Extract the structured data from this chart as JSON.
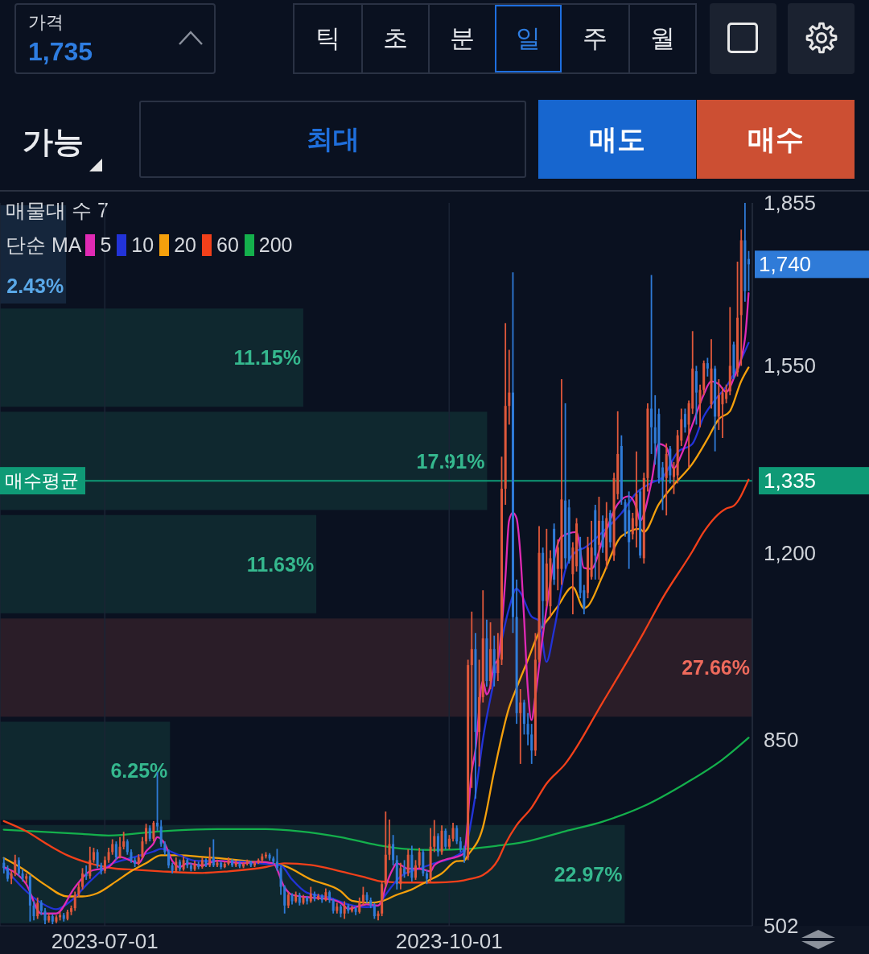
{
  "chart_data": [
    {
      "type": "candlestick",
      "x": [
        "2023-06-04",
        "2023-06-05",
        "2023-06-06",
        "2023-06-07",
        "2023-06-08",
        "2023-06-09",
        "2023-06-10",
        "2023-06-11",
        "2023-06-12",
        "2023-06-13",
        "2023-06-14",
        "2023-06-15",
        "2023-06-16",
        "2023-06-17",
        "2023-06-18",
        "2023-06-19",
        "2023-06-20",
        "2023-06-21",
        "2023-06-22",
        "2023-06-23",
        "2023-06-24",
        "2023-06-25",
        "2023-06-26",
        "2023-06-27",
        "2023-06-28",
        "2023-06-29",
        "2023-06-30",
        "2023-07-01",
        "2023-07-02",
        "2023-07-03",
        "2023-07-04",
        "2023-07-05",
        "2023-07-06",
        "2023-07-07",
        "2023-07-08",
        "2023-07-09",
        "2023-07-10",
        "2023-07-11",
        "2023-07-12",
        "2023-07-13",
        "2023-07-14",
        "2023-07-15",
        "2023-07-16",
        "2023-07-17",
        "2023-07-18",
        "2023-07-19",
        "2023-07-20",
        "2023-07-21",
        "2023-07-22",
        "2023-07-23",
        "2023-07-24",
        "2023-07-25",
        "2023-07-26",
        "2023-07-27",
        "2023-07-28",
        "2023-07-29",
        "2023-07-30",
        "2023-07-31",
        "2023-08-01",
        "2023-08-02",
        "2023-08-03",
        "2023-08-04",
        "2023-08-05",
        "2023-08-06",
        "2023-08-07",
        "2023-08-08",
        "2023-08-09",
        "2023-08-10",
        "2023-08-11",
        "2023-08-12",
        "2023-08-13",
        "2023-08-14",
        "2023-08-15",
        "2023-08-16",
        "2023-08-17",
        "2023-08-18",
        "2023-08-19",
        "2023-08-20",
        "2023-08-21",
        "2023-08-22",
        "2023-08-23",
        "2023-08-24",
        "2023-08-25",
        "2023-08-26",
        "2023-08-27",
        "2023-08-28",
        "2023-08-29",
        "2023-08-30",
        "2023-08-31",
        "2023-09-01",
        "2023-09-02",
        "2023-09-03",
        "2023-09-04",
        "2023-09-05",
        "2023-09-06",
        "2023-09-07",
        "2023-09-08",
        "2023-09-09",
        "2023-09-10",
        "2023-09-11",
        "2023-09-12",
        "2023-09-13",
        "2023-09-14",
        "2023-09-15",
        "2023-09-16",
        "2023-09-17",
        "2023-09-18",
        "2023-09-19",
        "2023-09-20",
        "2023-09-21",
        "2023-09-22",
        "2023-09-23",
        "2023-09-24",
        "2023-09-25",
        "2023-09-26",
        "2023-09-27",
        "2023-09-28",
        "2023-09-29",
        "2023-09-30",
        "2023-10-01",
        "2023-10-02",
        "2023-10-03",
        "2023-10-04",
        "2023-10-05",
        "2023-10-06",
        "2023-10-07",
        "2023-10-08",
        "2023-10-09",
        "2023-10-10",
        "2023-10-11",
        "2023-10-12",
        "2023-10-13",
        "2023-10-14",
        "2023-10-15",
        "2023-10-16",
        "2023-10-17",
        "2023-10-18",
        "2023-10-19",
        "2023-10-20",
        "2023-10-21",
        "2023-10-22",
        "2023-10-23",
        "2023-10-24",
        "2023-10-25",
        "2023-10-26",
        "2023-10-27",
        "2023-10-28",
        "2023-10-29",
        "2023-10-30",
        "2023-10-31",
        "2023-11-01",
        "2023-11-02",
        "2023-11-03",
        "2023-11-04",
        "2023-11-05",
        "2023-11-06",
        "2023-11-07",
        "2023-11-08",
        "2023-11-09",
        "2023-11-10",
        "2023-11-11",
        "2023-11-12",
        "2023-11-13",
        "2023-11-14",
        "2023-11-15",
        "2023-11-16",
        "2023-11-17",
        "2023-11-18",
        "2023-11-19",
        "2023-11-20",
        "2023-11-21",
        "2023-11-22",
        "2023-11-23",
        "2023-11-24",
        "2023-11-25",
        "2023-11-26",
        "2023-11-27",
        "2023-11-28",
        "2023-11-29",
        "2023-11-30",
        "2023-12-01",
        "2023-12-02",
        "2023-12-03",
        "2023-12-04",
        "2023-12-05",
        "2023-12-06",
        "2023-12-07",
        "2023-12-08",
        "2023-12-09",
        "2023-12-10",
        "2023-12-11",
        "2023-12-12",
        "2023-12-13",
        "2023-12-14",
        "2023-12-15",
        "2023-12-16",
        "2023-12-17",
        "2023-12-18",
        "2023-12-19",
        "2023-12-20"
      ],
      "ohlc": [
        [
          620,
          630,
          600,
          610
        ],
        [
          610,
          615,
          585,
          590
        ],
        [
          590,
          605,
          580,
          600
        ],
        [
          600,
          635,
          595,
          625
        ],
        [
          625,
          630,
          595,
          600
        ],
        [
          600,
          608,
          585,
          590
        ],
        [
          590,
          600,
          582,
          595
        ],
        [
          595,
          598,
          510,
          540
        ],
        [
          540,
          548,
          512,
          520
        ],
        [
          520,
          555,
          515,
          545
        ],
        [
          545,
          550,
          522,
          530
        ],
        [
          530,
          535,
          505,
          512
        ],
        [
          512,
          526,
          508,
          520
        ],
        [
          520,
          524,
          505,
          510
        ],
        [
          510,
          522,
          507,
          518
        ],
        [
          518,
          528,
          512,
          522
        ],
        [
          522,
          526,
          510,
          515
        ],
        [
          515,
          532,
          512,
          528
        ],
        [
          528,
          540,
          522,
          535
        ],
        [
          535,
          566,
          530,
          560
        ],
        [
          560,
          582,
          555,
          575
        ],
        [
          575,
          610,
          570,
          600
        ],
        [
          600,
          615,
          588,
          595
        ],
        [
          595,
          650,
          590,
          625
        ],
        [
          625,
          648,
          620,
          640
        ],
        [
          640,
          645,
          610,
          615
        ],
        [
          615,
          620,
          598,
          605
        ],
        [
          605,
          632,
          600,
          625
        ],
        [
          625,
          648,
          620,
          640
        ],
        [
          640,
          664,
          635,
          655
        ],
        [
          655,
          660,
          625,
          630
        ],
        [
          630,
          668,
          628,
          650
        ],
        [
          650,
          678,
          645,
          660
        ],
        [
          660,
          664,
          635,
          640
        ],
        [
          640,
          645,
          620,
          625
        ],
        [
          625,
          630,
          612,
          618
        ],
        [
          618,
          636,
          615,
          630
        ],
        [
          630,
          668,
          628,
          660
        ],
        [
          660,
          693,
          655,
          685
        ],
        [
          685,
          690,
          660,
          665
        ],
        [
          665,
          698,
          660,
          695
        ],
        [
          695,
          790,
          680,
          688
        ],
        [
          688,
          700,
          650,
          655
        ],
        [
          655,
          660,
          635,
          640
        ],
        [
          640,
          645,
          610,
          615
        ],
        [
          615,
          620,
          600,
          605
        ],
        [
          605,
          630,
          602,
          622
        ],
        [
          622,
          626,
          604,
          608
        ],
        [
          608,
          632,
          605,
          625
        ],
        [
          625,
          628,
          610,
          615
        ],
        [
          615,
          620,
          604,
          608
        ],
        [
          608,
          624,
          605,
          618
        ],
        [
          618,
          622,
          608,
          612
        ],
        [
          612,
          630,
          609,
          625
        ],
        [
          625,
          628,
          612,
          615
        ],
        [
          615,
          649,
          612,
          630
        ],
        [
          630,
          664,
          612,
          615
        ],
        [
          615,
          626,
          612,
          620
        ],
        [
          620,
          623,
          608,
          612
        ],
        [
          612,
          622,
          610,
          618
        ],
        [
          618,
          630,
          615,
          625
        ],
        [
          625,
          627,
          612,
          615
        ],
        [
          615,
          624,
          612,
          620
        ],
        [
          620,
          622,
          610,
          613
        ],
        [
          613,
          621,
          610,
          618
        ],
        [
          618,
          626,
          615,
          622
        ],
        [
          622,
          624,
          612,
          615
        ],
        [
          615,
          623,
          612,
          620
        ],
        [
          620,
          628,
          618,
          625
        ],
        [
          625,
          637,
          620,
          632
        ],
        [
          632,
          640,
          628,
          635
        ],
        [
          635,
          638,
          624,
          628
        ],
        [
          628,
          632,
          618,
          622
        ],
        [
          622,
          646,
          605,
          610
        ],
        [
          610,
          615,
          560,
          575
        ],
        [
          575,
          578,
          525,
          540
        ],
        [
          540,
          565,
          535,
          560
        ],
        [
          560,
          563,
          542,
          548
        ],
        [
          548,
          566,
          545,
          560
        ],
        [
          560,
          564,
          540,
          545
        ],
        [
          545,
          560,
          542,
          555
        ],
        [
          555,
          558,
          542,
          548
        ],
        [
          548,
          575,
          545,
          562
        ],
        [
          562,
          566,
          548,
          552
        ],
        [
          552,
          562,
          550,
          558
        ],
        [
          558,
          561,
          545,
          550
        ],
        [
          550,
          572,
          548,
          565
        ],
        [
          565,
          568,
          545,
          550
        ],
        [
          550,
          553,
          525,
          530
        ],
        [
          530,
          545,
          525,
          538
        ],
        [
          538,
          542,
          518,
          525
        ],
        [
          525,
          548,
          515,
          540
        ],
        [
          540,
          543,
          525,
          530
        ],
        [
          530,
          540,
          527,
          535
        ],
        [
          535,
          538,
          522,
          528
        ],
        [
          528,
          555,
          525,
          545
        ],
        [
          545,
          575,
          540,
          560
        ],
        [
          560,
          565,
          545,
          550
        ],
        [
          550,
          555,
          535,
          540
        ],
        [
          540,
          545,
          515,
          520
        ],
        [
          520,
          530,
          512,
          525
        ],
        [
          525,
          585,
          520,
          580
        ],
        [
          580,
          716,
          575,
          635
        ],
        [
          635,
          701,
          625,
          655
        ],
        [
          655,
          672,
          615,
          625
        ],
        [
          625,
          634,
          570,
          580
        ],
        [
          580,
          620,
          570,
          610
        ],
        [
          610,
          625,
          592,
          600
        ],
        [
          600,
          645,
          595,
          635
        ],
        [
          635,
          652,
          585,
          592
        ],
        [
          592,
          625,
          588,
          615
        ],
        [
          615,
          648,
          610,
          640
        ],
        [
          640,
          645,
          595,
          600
        ],
        [
          600,
          606,
          580,
          590
        ],
        [
          590,
          685,
          585,
          650
        ],
        [
          650,
          700,
          640,
          670
        ],
        [
          670,
          675,
          632,
          640
        ],
        [
          640,
          690,
          635,
          680
        ],
        [
          680,
          684,
          645,
          650
        ],
        [
          650,
          672,
          645,
          665
        ],
        [
          665,
          695,
          660,
          685
        ],
        [
          685,
          690,
          655,
          660
        ],
        [
          660,
          668,
          640,
          645
        ],
        [
          645,
          652,
          620,
          630
        ],
        [
          630,
          1000,
          625,
          990
        ],
        [
          990,
          1090,
          760,
          1020
        ],
        [
          1020,
          1050,
          740,
          865
        ],
        [
          865,
          1000,
          800,
          930
        ],
        [
          930,
          1130,
          920,
          1040
        ],
        [
          1040,
          1075,
          950,
          960
        ],
        [
          960,
          1070,
          945,
          1020
        ],
        [
          1020,
          1045,
          950,
          975
        ],
        [
          975,
          1050,
          960,
          1000
        ],
        [
          1000,
          1380,
          990,
          1320
        ],
        [
          1320,
          1630,
          1290,
          1475
        ],
        [
          1475,
          1580,
          1440,
          1500
        ],
        [
          1500,
          1725,
          1050,
          1080
        ],
        [
          1080,
          1150,
          880,
          900
        ],
        [
          900,
          945,
          805,
          920
        ],
        [
          920,
          925,
          860,
          880
        ],
        [
          880,
          900,
          840,
          860
        ],
        [
          860,
          880,
          805,
          830
        ],
        [
          830,
          1050,
          820,
          1000
        ],
        [
          1000,
          1250,
          995,
          1200
        ],
        [
          1200,
          1210,
          1060,
          1110
        ],
        [
          1110,
          1245,
          1100,
          1180
        ],
        [
          1100,
          1205,
          1080,
          1190
        ],
        [
          1245,
          1255,
          1140,
          1150
        ],
        [
          1170,
          1225,
          1130,
          1210
        ],
        [
          1170,
          1525,
          1140,
          1300
        ],
        [
          1298,
          1480,
          1170,
          1190
        ],
        [
          1285,
          1300,
          1180,
          1185
        ],
        [
          1160,
          1220,
          1085,
          1210
        ],
        [
          1175,
          1265,
          1165,
          1255
        ],
        [
          1210,
          1230,
          1115,
          1125
        ],
        [
          1130,
          1140,
          1085,
          1095
        ],
        [
          1125,
          1230,
          1115,
          1210
        ],
        [
          1155,
          1260,
          1150,
          1210
        ],
        [
          1280,
          1290,
          1150,
          1195
        ],
        [
          1215,
          1305,
          1150,
          1260
        ],
        [
          1260,
          1270,
          1200,
          1210
        ],
        [
          1185,
          1295,
          1170,
          1265
        ],
        [
          1275,
          1280,
          1210,
          1220
        ],
        [
          1195,
          1350,
          1185,
          1340
        ],
        [
          1310,
          1465,
          1300,
          1385
        ],
        [
          1400,
          1420,
          1290,
          1300
        ],
        [
          1295,
          1300,
          1230,
          1240
        ],
        [
          1280,
          1315,
          1170,
          1220
        ],
        [
          1235,
          1275,
          1225,
          1265
        ],
        [
          1250,
          1390,
          1210,
          1310
        ],
        [
          1315,
          1320,
          1190,
          1195
        ],
        [
          1190,
          1350,
          1180,
          1340
        ],
        [
          1340,
          1480,
          1315,
          1470
        ],
        [
          1470,
          1720,
          1385,
          1435
        ],
        [
          1435,
          1495,
          1365,
          1405
        ],
        [
          1460,
          1470,
          1330,
          1340
        ],
        [
          1360,
          1370,
          1280,
          1335
        ],
        [
          1340,
          1405,
          1270,
          1385
        ],
        [
          1395,
          1400,
          1330,
          1345
        ],
        [
          1342,
          1370,
          1310,
          1360
        ],
        [
          1345,
          1430,
          1330,
          1420
        ],
        [
          1410,
          1470,
          1400,
          1450
        ],
        [
          1460,
          1470,
          1425,
          1435
        ],
        [
          1440,
          1485,
          1360,
          1480
        ],
        [
          1470,
          1615,
          1460,
          1545
        ],
        [
          1540,
          1550,
          1440,
          1500
        ],
        [
          1480,
          1515,
          1435,
          1505
        ],
        [
          1505,
          1560,
          1495,
          1555
        ],
        [
          1555,
          1565,
          1530,
          1545
        ],
        [
          1478,
          1600,
          1470,
          1545
        ],
        [
          1545,
          1550,
          1390,
          1455
        ],
        [
          1455,
          1525,
          1430,
          1495
        ],
        [
          1478,
          1510,
          1415,
          1500
        ],
        [
          1488,
          1515,
          1480,
          1505
        ],
        [
          1502,
          1660,
          1495,
          1550
        ],
        [
          1590,
          1595,
          1525,
          1535
        ],
        [
          1538,
          1745,
          1530,
          1640
        ],
        [
          1645,
          1805,
          1550,
          1785
        ],
        [
          1785,
          1855,
          1670,
          1690
        ],
        [
          1750,
          1765,
          1690,
          1740
        ]
      ],
      "colors": [
        "#2f7bd8",
        "#2f7bd8",
        "#e0583b",
        "#e0583b",
        "#2f7bd8",
        "#2f7bd8",
        "#e0583b",
        "#2f7bd8",
        "#2f7bd8",
        "#e0583b",
        "#2f7bd8",
        "#2f7bd8",
        "#e0583b",
        "#2f7bd8",
        "#e0583b",
        "#e0583b",
        "#2f7bd8",
        "#e0583b",
        "#e0583b",
        "#e0583b",
        "#e0583b",
        "#e0583b",
        "#2f7bd8",
        "#e0583b",
        "#e0583b",
        "#2f7bd8",
        "#2f7bd8",
        "#e0583b",
        "#e0583b",
        "#e0583b",
        "#2f7bd8",
        "#e0583b",
        "#e0583b",
        "#2f7bd8",
        "#2f7bd8",
        "#2f7bd8",
        "#e0583b",
        "#e0583b",
        "#e0583b",
        "#2f7bd8",
        "#e0583b",
        "#2f7bd8",
        "#2f7bd8",
        "#2f7bd8",
        "#2f7bd8",
        "#2f7bd8",
        "#e0583b",
        "#2f7bd8",
        "#e0583b",
        "#2f7bd8",
        "#2f7bd8",
        "#e0583b",
        "#2f7bd8",
        "#e0583b",
        "#2f7bd8",
        "#e0583b",
        "#2f7bd8",
        "#e0583b",
        "#2f7bd8",
        "#e0583b",
        "#e0583b",
        "#2f7bd8",
        "#e0583b",
        "#2f7bd8",
        "#e0583b",
        "#e0583b",
        "#2f7bd8",
        "#e0583b",
        "#e0583b",
        "#e0583b",
        "#e0583b",
        "#2f7bd8",
        "#2f7bd8",
        "#2f7bd8",
        "#2f7bd8",
        "#2f7bd8",
        "#e0583b",
        "#2f7bd8",
        "#e0583b",
        "#2f7bd8",
        "#e0583b",
        "#2f7bd8",
        "#e0583b",
        "#2f7bd8",
        "#e0583b",
        "#2f7bd8",
        "#e0583b",
        "#2f7bd8",
        "#2f7bd8",
        "#e0583b",
        "#2f7bd8",
        "#e0583b",
        "#2f7bd8",
        "#e0583b",
        "#2f7bd8",
        "#e0583b",
        "#e0583b",
        "#2f7bd8",
        "#2f7bd8",
        "#2f7bd8",
        "#e0583b",
        "#e0583b",
        "#e0583b",
        "#e0583b",
        "#2f7bd8",
        "#2f7bd8",
        "#e0583b",
        "#2f7bd8",
        "#e0583b",
        "#2f7bd8",
        "#e0583b",
        "#e0583b",
        "#2f7bd8",
        "#2f7bd8",
        "#e0583b",
        "#e0583b",
        "#2f7bd8",
        "#e0583b",
        "#2f7bd8",
        "#e0583b",
        "#e0583b",
        "#2f7bd8",
        "#2f7bd8",
        "#2f7bd8",
        "#e0583b",
        "#e0583b",
        "#2f7bd8",
        "#e0583b",
        "#e0583b",
        "#2f7bd8",
        "#e0583b",
        "#2f7bd8",
        "#e0583b",
        "#e0583b",
        "#e0583b",
        "#e0583b",
        "#2f7bd8",
        "#2f7bd8",
        "#e0583b",
        "#2f7bd8",
        "#2f7bd8",
        "#2f7bd8",
        "#e0583b",
        "#e0583b",
        "#2f7bd8",
        "#e0583b",
        "#e0583b",
        "#2f7bd8",
        "#e0583b",
        "#e0583b",
        "#2f7bd8",
        "#2f7bd8",
        "#e0583b",
        "#e0583b",
        "#2f7bd8",
        "#2f7bd8",
        "#e0583b",
        "#e0583b",
        "#2f7bd8",
        "#e0583b",
        "#2f7bd8",
        "#e0583b",
        "#2f7bd8",
        "#e0583b",
        "#e0583b",
        "#2f7bd8",
        "#2f7bd8",
        "#2f7bd8",
        "#e0583b",
        "#e0583b",
        "#2f7bd8",
        "#e0583b",
        "#e0583b",
        "#2f7bd8",
        "#2f7bd8",
        "#2f7bd8",
        "#2f7bd8",
        "#e0583b",
        "#2f7bd8",
        "#e0583b",
        "#e0583b",
        "#e0583b",
        "#2f7bd8",
        "#e0583b",
        "#e0583b",
        "#2f7bd8",
        "#e0583b",
        "#e0583b",
        "#2f7bd8",
        "#e0583b",
        "#2f7bd8",
        "#e0583b",
        "#e0583b",
        "#e0583b",
        "#e0583b",
        "#2f7bd8",
        "#e0583b",
        "#e0583b",
        "#2f7bd8",
        "#2f7bd8"
      ],
      "xlim": [
        "2023-06-03",
        "2023-12-21"
      ],
      "xticks": [
        "2023-07-01",
        "2023-10-01"
      ],
      "ylim": [
        502,
        1855
      ],
      "yticks": [
        502,
        850,
        {
          "value": 1200,
          "label": "1,200"
        },
        {
          "value": 1335,
          "label": "1,335"
        },
        {
          "value": 1550,
          "label": "1,550"
        },
        {
          "value": 1855,
          "label": "1,855"
        }
      ],
      "grid": "x",
      "legend": "top left",
      "legend_title": "단순 MA",
      "series": [
        {
          "type": "line",
          "name": "200",
          "color": "#14b04c",
          "x": [
            "2023-06-04",
            "2023-06-25",
            "2023-07-02",
            "2023-07-16",
            "2023-07-31",
            "2023-08-13",
            "2023-08-22",
            "2023-09-02",
            "2023-09-12",
            "2023-09-19",
            "2023-09-27",
            "2023-10-06",
            "2023-10-14",
            "2023-10-21",
            "2023-11-01",
            "2023-11-11",
            "2023-11-22",
            "2023-12-03",
            "2023-12-13",
            "2023-12-20"
          ],
          "values": [
            682,
            674,
            671,
            679,
            683,
            683,
            679,
            668,
            653,
            646,
            644,
            646,
            652,
            659,
            679,
            697,
            726,
            768,
            813,
            854
          ]
        },
        {
          "type": "line",
          "name": "60",
          "color": "#f2401a",
          "x": [
            "2023-06-04",
            "2023-06-10",
            "2023-06-16",
            "2023-06-21",
            "2023-06-27",
            "2023-07-04",
            "2023-07-09",
            "2023-07-16",
            "2023-07-27",
            "2023-08-03",
            "2023-08-13",
            "2023-08-18",
            "2023-08-25",
            "2023-09-02",
            "2023-09-09",
            "2023-09-13",
            "2023-09-19",
            "2023-09-27",
            "2023-10-03",
            "2023-10-06",
            "2023-10-10",
            "2023-10-14",
            "2023-10-16",
            "2023-10-19",
            "2023-10-23",
            "2023-10-27",
            "2023-11-01",
            "2023-11-11",
            "2023-11-22",
            "2023-11-27",
            "2023-12-05",
            "2023-12-08",
            "2023-12-14",
            "2023-12-16",
            "2023-12-20"
          ],
          "values": [
            698,
            679,
            653,
            634,
            619,
            609,
            607,
            604,
            601,
            604,
            612,
            619,
            616,
            604,
            592,
            585,
            583,
            583,
            585,
            589,
            597,
            625,
            655,
            690,
            723,
            768,
            805,
            920,
            1051,
            1115,
            1203,
            1239,
            1283,
            1288,
            1337
          ]
        },
        {
          "type": "line",
          "name": "20",
          "color": "#f5a00c",
          "x": [
            "2023-06-04",
            "2023-06-09",
            "2023-06-15",
            "2023-06-21",
            "2023-06-25",
            "2023-06-29",
            "2023-07-04",
            "2023-07-08",
            "2023-07-12",
            "2023-07-16",
            "2023-07-21",
            "2023-07-27",
            "2023-08-03",
            "2023-08-13",
            "2023-08-18",
            "2023-08-25",
            "2023-09-02",
            "2023-09-05",
            "2023-09-10",
            "2023-09-13",
            "2023-09-17",
            "2023-09-21",
            "2023-09-25",
            "2023-09-29",
            "2023-10-03",
            "2023-10-05",
            "2023-10-06",
            "2023-10-10",
            "2023-10-13",
            "2023-10-17",
            "2023-10-19",
            "2023-10-22",
            "2023-10-25",
            "2023-10-28",
            "2023-10-30",
            "2023-11-03",
            "2023-11-06",
            "2023-11-07",
            "2023-11-11",
            "2023-11-16",
            "2023-11-21",
            "2023-11-22",
            "2023-11-26",
            "2023-11-30",
            "2023-12-05",
            "2023-12-09",
            "2023-12-12",
            "2023-12-15",
            "2023-12-18",
            "2023-12-20"
          ],
          "values": [
            629,
            609,
            579,
            557,
            557,
            563,
            585,
            604,
            619,
            634,
            634,
            631,
            627,
            619,
            614,
            589,
            567,
            549,
            545,
            548,
            560,
            570,
            585,
            600,
            623,
            624,
            634,
            686,
            790,
            910,
            947,
            999,
            1051,
            1081,
            1100,
            1136,
            1096,
            1100,
            1157,
            1231,
            1245,
            1239,
            1291,
            1327,
            1367,
            1413,
            1450,
            1465,
            1521,
            1547
          ]
        },
        {
          "type": "line",
          "name": "10",
          "color": "#2233d8",
          "x": [
            "2023-06-04",
            "2023-06-14",
            "2023-06-18",
            "2023-06-22",
            "2023-06-27",
            "2023-07-02",
            "2023-07-07",
            "2023-07-14",
            "2023-07-16",
            "2023-07-21",
            "2023-07-25",
            "2023-08-07",
            "2023-08-11",
            "2023-08-17",
            "2023-08-20",
            "2023-08-24",
            "2023-08-30",
            "2023-09-04",
            "2023-09-09",
            "2023-09-12",
            "2023-09-14",
            "2023-09-18",
            "2023-09-23",
            "2023-09-27",
            "2023-10-02",
            "2023-10-05",
            "2023-10-08",
            "2023-10-10",
            "2023-10-13",
            "2023-10-17",
            "2023-10-19",
            "2023-10-20",
            "2023-10-23",
            "2023-10-25",
            "2023-10-27",
            "2023-10-29",
            "2023-11-01",
            "2023-11-04",
            "2023-11-06",
            "2023-11-11",
            "2023-11-16",
            "2023-11-20",
            "2023-11-24",
            "2023-11-27",
            "2023-12-01",
            "2023-12-05",
            "2023-12-08",
            "2023-12-11",
            "2023-12-14",
            "2023-12-17",
            "2023-12-20"
          ],
          "values": [
            612,
            545,
            533,
            549,
            585,
            615,
            627,
            641,
            646,
            634,
            624,
            622,
            619,
            615,
            589,
            564,
            555,
            542,
            537,
            540,
            560,
            594,
            609,
            619,
            630,
            645,
            746,
            850,
            962,
            1096,
            1133,
            1126,
            1081,
            1073,
            996,
            1054,
            1167,
            1203,
            1209,
            1239,
            1274,
            1312,
            1331,
            1341,
            1388,
            1404,
            1455,
            1486,
            1511,
            1547,
            1593
          ]
        },
        {
          "type": "line",
          "name": "5",
          "color": "#e02ab4",
          "x": [
            "2023-06-04",
            "2023-06-10",
            "2023-06-14",
            "2023-06-18",
            "2023-06-23",
            "2023-06-27",
            "2023-07-02",
            "2023-07-05",
            "2023-07-08",
            "2023-07-10",
            "2023-07-12",
            "2023-07-14",
            "2023-07-15",
            "2023-07-17",
            "2023-07-19",
            "2023-07-21",
            "2023-07-23",
            "2023-07-27",
            "2023-07-31",
            "2023-08-07",
            "2023-08-11",
            "2023-08-15",
            "2023-08-18",
            "2023-08-20",
            "2023-08-25",
            "2023-08-30",
            "2023-09-02",
            "2023-09-04",
            "2023-09-09",
            "2023-09-12",
            "2023-09-13",
            "2023-09-14",
            "2023-09-16",
            "2023-09-17",
            "2023-09-20",
            "2023-09-23",
            "2023-09-26",
            "2023-09-27",
            "2023-09-30",
            "2023-10-03",
            "2023-10-05",
            "2023-10-07",
            "2023-10-08",
            "2023-10-10",
            "2023-10-11",
            "2023-10-12",
            "2023-10-13",
            "2023-10-14",
            "2023-10-16",
            "2023-10-17",
            "2023-10-18",
            "2023-10-19",
            "2023-10-20",
            "2023-10-21",
            "2023-10-22",
            "2023-10-23",
            "2023-10-24",
            "2023-10-26",
            "2023-10-31",
            "2023-11-04",
            "2023-11-06",
            "2023-11-08",
            "2023-11-11",
            "2023-11-15",
            "2023-11-18",
            "2023-11-20",
            "2023-11-21",
            "2023-11-24",
            "2023-11-26",
            "2023-11-28",
            "2023-11-30",
            "2023-12-02",
            "2023-12-05",
            "2023-12-08",
            "2023-12-10",
            "2023-12-12",
            "2023-12-14",
            "2023-12-16",
            "2023-12-19",
            "2023-12-20"
          ],
          "values": [
            612,
            580,
            525,
            525,
            574,
            604,
            612,
            631,
            624,
            619,
            641,
            656,
            668,
            656,
            624,
            612,
            619,
            615,
            624,
            619,
            622,
            619,
            574,
            560,
            555,
            552,
            545,
            534,
            542,
            540,
            549,
            574,
            609,
            619,
            609,
            609,
            604,
            615,
            626,
            631,
            638,
            790,
            830,
            960,
            935,
            950,
            990,
            1000,
            1150,
            1260,
            1275,
            1265,
            1200,
            1080,
            947,
            887,
            930,
            1044,
            1230,
            1239,
            1172,
            1170,
            1224,
            1291,
            1306,
            1285,
            1260,
            1331,
            1404,
            1398,
            1358,
            1383,
            1440,
            1496,
            1521,
            1516,
            1501,
            1526,
            1599,
            1686
          ]
        }
      ],
      "ref_lines": [
        {
          "axis": "y",
          "value": 1335,
          "label": "매수평균",
          "color": "#0f9a76"
        }
      ],
      "annotations": [
        "가격",
        "1,735",
        "틱",
        "초",
        "분",
        "일",
        "주",
        "월",
        "가능",
        "최대",
        "매도",
        "매수",
        {
          "text": "1,740",
          "x": "2023-12-20",
          "y": 1740
        }
      ]
    },
    {
      "type": "bar",
      "orientation": "horizontal",
      "title": "매물대 수 7",
      "categories": [
        null,
        null,
        null,
        null,
        null,
        null,
        null
      ],
      "values": [
        2.43,
        11.15,
        17.91,
        11.63,
        27.66,
        6.25,
        22.97
      ],
      "colors": [
        "#5aa8e8",
        "#35b88e",
        "#35b88e",
        "#35b88e",
        "#ee6a5c",
        "#35b88e",
        "#35b88e"
      ],
      "value_labels": [
        "2.43%",
        "11.15%",
        "17.91%",
        "11.63%",
        "27.66%",
        "6.25%",
        "22.97%"
      ],
      "tick_labels": false
    }
  ]
}
